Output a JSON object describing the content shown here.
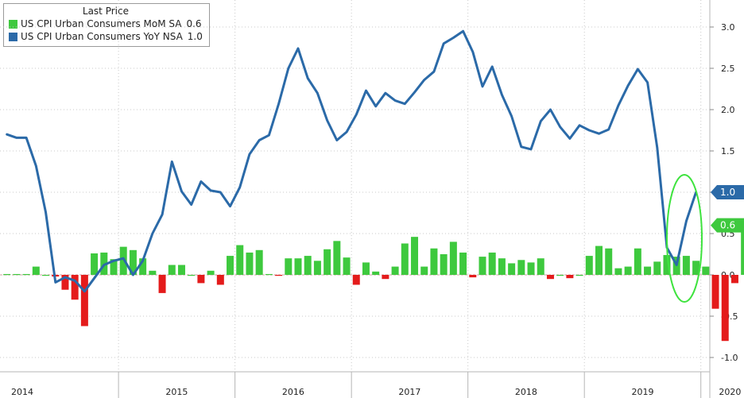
{
  "chart_data": {
    "type": "bar+line",
    "title": "",
    "legend": {
      "title": "Last Price",
      "placement": "top-left",
      "entries": [
        {
          "name": "US CPI Urban Consumers MoM SA",
          "last": "0.6",
          "color": "#3ec93e"
        },
        {
          "name": "US CPI Urban Consumers YoY NSA",
          "last": "1.0",
          "color": "#2b6aa8"
        }
      ]
    },
    "x_start": "2014-01",
    "years": [
      "2014",
      "2015",
      "2016",
      "2017",
      "2018",
      "2019",
      "2020"
    ],
    "ylim": [
      -1.1,
      3.3
    ],
    "yticks": [
      "3.0",
      "2.5",
      "2.0",
      "1.5",
      "1.0",
      "0.5",
      "0.0",
      "-0.5",
      "-1.0"
    ],
    "series": [
      {
        "name": "US CPI Urban Consumers MoM SA",
        "type": "bar",
        "color_positive": "#3ec93e",
        "color_negative": "#e41b1b",
        "values": [
          0.01,
          0.01,
          0.01,
          0.1,
          0.0,
          -0.02,
          -0.18,
          -0.3,
          -0.62,
          0.26,
          0.27,
          0.19,
          0.34,
          0.3,
          0.2,
          0.05,
          -0.22,
          0.12,
          0.12,
          0.0,
          -0.1,
          0.05,
          -0.12,
          0.23,
          0.36,
          0.27,
          0.3,
          0.01,
          -0.01,
          0.2,
          0.2,
          0.23,
          0.17,
          0.31,
          0.41,
          0.21,
          -0.12,
          0.15,
          0.04,
          -0.05,
          0.1,
          0.38,
          0.46,
          0.1,
          0.32,
          0.25,
          0.4,
          0.27,
          -0.03,
          0.22,
          0.27,
          0.2,
          0.14,
          0.18,
          0.15,
          0.2,
          -0.05,
          0.0,
          -0.04,
          0.0,
          0.23,
          0.35,
          0.32,
          0.08,
          0.1,
          0.32,
          0.1,
          0.16,
          0.24,
          0.22,
          0.23,
          0.17,
          0.1,
          -0.41,
          -0.8,
          -0.1,
          0.58,
          0.6
        ]
      },
      {
        "name": "US CPI Urban Consumers YoY NSA",
        "type": "line",
        "color": "#2b6aa8",
        "values": [
          1.7,
          1.66,
          1.66,
          1.32,
          0.76,
          -0.09,
          -0.03,
          -0.07,
          -0.2,
          -0.04,
          0.12,
          0.17,
          0.2,
          0.0,
          0.17,
          0.5,
          0.73,
          1.37,
          1.01,
          0.85,
          1.13,
          1.02,
          1.0,
          0.83,
          1.06,
          1.46,
          1.63,
          1.69,
          2.07,
          2.5,
          2.74,
          2.38,
          2.2,
          1.87,
          1.63,
          1.73,
          1.94,
          2.23,
          2.04,
          2.2,
          2.11,
          2.07,
          2.21,
          2.36,
          2.46,
          2.8,
          2.87,
          2.95,
          2.7,
          2.28,
          2.52,
          2.18,
          1.92,
          1.55,
          1.52,
          1.86,
          2.0,
          1.79,
          1.65,
          1.81,
          1.75,
          1.71,
          1.76,
          2.05,
          2.29,
          2.49,
          2.33,
          1.54,
          0.33,
          0.12,
          0.65,
          1.0
        ]
      }
    ],
    "last_value_labels": [
      "1.0",
      "0.6"
    ],
    "grid": true,
    "annotation": "green ellipse around latest values"
  }
}
